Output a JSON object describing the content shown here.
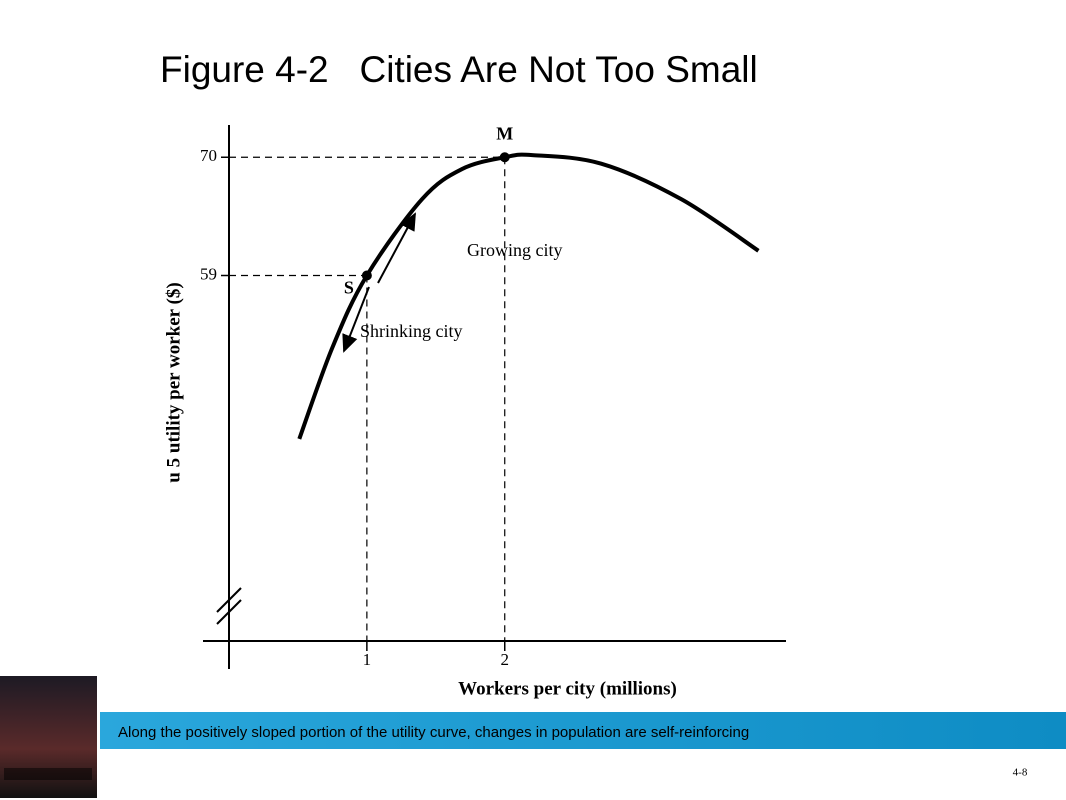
{
  "title": "Figure 4-2   Cities Are Not Too Small",
  "chart_data": {
    "type": "line",
    "x_label": "Workers per city (millions)",
    "y_label": "u 5 utility per worker ($)",
    "x": [
      0.51,
      0.75,
      1,
      1.4,
      1.69,
      2,
      2.2,
      2.7,
      3.28,
      3.84
    ],
    "series": [
      {
        "color": "#000000",
        "values": [
          43.8,
          52.3,
          59,
          66.1,
          68.9,
          70,
          70.2,
          69.4,
          66.1,
          61.3
        ]
      }
    ],
    "xlim": [
      0,
      4.04
    ],
    "ylim": [
      25,
      73
    ],
    "xticks": [
      1,
      2
    ],
    "yticks": [
      59,
      70
    ],
    "points": [
      {
        "label": "M",
        "x": 2,
        "y": 70
      },
      {
        "label": "S",
        "x": 1,
        "y": 59
      }
    ],
    "annotations": [
      "Growing city",
      "Shrinking city"
    ]
  },
  "caption": "Along the positively sloped portion of the utility curve, changes in population are self-reinforcing",
  "page_number": "4-8"
}
